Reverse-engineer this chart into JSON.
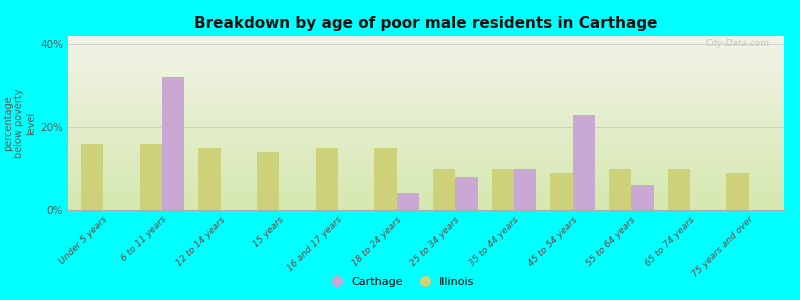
{
  "title": "Breakdown by age of poor male residents in Carthage",
  "ylabel": "percentage\nbelow poverty\nlevel",
  "categories": [
    "Under 5 years",
    "6 to 11 years",
    "12 to 14 years",
    "15 years",
    "16 and 17 years",
    "18 to 24 years",
    "25 to 34 years",
    "35 to 44 years",
    "45 to 54 years",
    "55 to 64 years",
    "65 to 74 years",
    "75 years and over"
  ],
  "carthage": [
    0,
    32,
    0,
    0,
    0,
    4,
    8,
    10,
    23,
    6,
    0,
    0
  ],
  "illinois": [
    16,
    16,
    15,
    14,
    15,
    15,
    10,
    10,
    9,
    10,
    10,
    9
  ],
  "carthage_color": "#c9a8d4",
  "illinois_color": "#cdd17a",
  "ylim": [
    0,
    42
  ],
  "yticks": [
    0,
    20,
    40
  ],
  "ytick_labels": [
    "0%",
    "20%",
    "40%"
  ],
  "bar_width": 0.38,
  "watermark": "City-Data.com",
  "bg_color": "#00ffff",
  "plot_bg_top": "#f2f3e8",
  "plot_bg_bottom": "#d6e8b0"
}
